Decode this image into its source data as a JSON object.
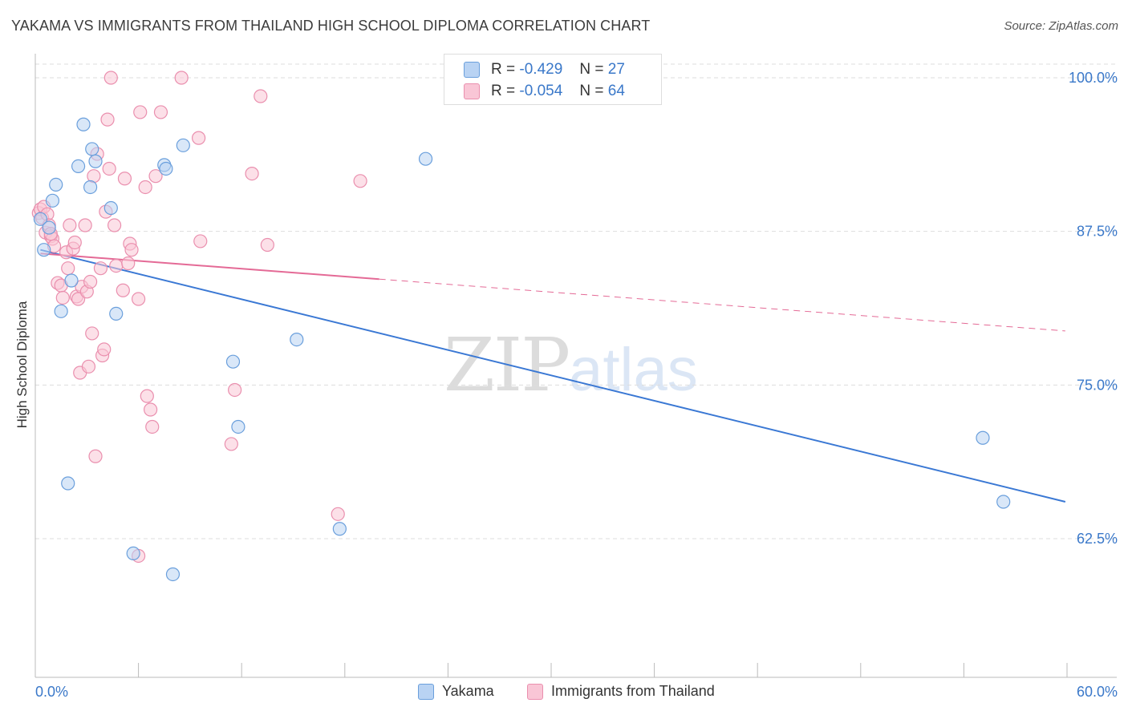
{
  "title": "YAKAMA VS IMMIGRANTS FROM THAILAND HIGH SCHOOL DIPLOMA CORRELATION CHART",
  "source": "Source: ZipAtlas.com",
  "watermark": {
    "zip": "ZIP",
    "atlas": "atlas"
  },
  "legend": {
    "rows": [
      {
        "r_label": "R =",
        "r_value": "-0.429",
        "n_label": "N =",
        "n_value": "27"
      },
      {
        "r_label": "R =",
        "r_value": "-0.054",
        "n_label": "N =",
        "n_value": "64"
      }
    ]
  },
  "colors": {
    "yakama_fill": "#b9d3f3",
    "yakama_stroke": "#6a9fdc",
    "yakama_line": "#3a78d4",
    "thai_fill": "#f9c6d6",
    "thai_stroke": "#ea8fae",
    "thai_line": "#e46a96",
    "axis_value": "#3a78c9",
    "grid": "#dddddd"
  },
  "chart_data": {
    "type": "scatter",
    "title": "YAKAMA VS IMMIGRANTS FROM THAILAND HIGH SCHOOL DIPLOMA CORRELATION CHART",
    "xlabel": "",
    "ylabel": "High School Diploma",
    "xlim": [
      0,
      60
    ],
    "ylim": [
      50,
      102
    ],
    "x_tick_labels": [
      "0.0%",
      "60.0%"
    ],
    "y_ticks": [
      62.5,
      75.0,
      87.5,
      100.0
    ],
    "y_tick_labels": [
      "62.5%",
      "75.0%",
      "87.5%",
      "100.0%"
    ],
    "grid": true,
    "legend_position": "top-center",
    "series": [
      {
        "name": "Yakama",
        "r": -0.429,
        "n": 27,
        "points": [
          [
            0.3,
            88.5
          ],
          [
            0.5,
            86.0
          ],
          [
            0.8,
            87.8
          ],
          [
            1.0,
            90.0
          ],
          [
            1.2,
            91.3
          ],
          [
            1.5,
            81.0
          ],
          [
            1.9,
            67.0
          ],
          [
            2.1,
            83.5
          ],
          [
            2.5,
            92.8
          ],
          [
            2.8,
            96.2
          ],
          [
            3.2,
            91.1
          ],
          [
            3.3,
            94.2
          ],
          [
            3.5,
            93.2
          ],
          [
            4.4,
            89.4
          ],
          [
            4.7,
            80.8
          ],
          [
            5.7,
            61.3
          ],
          [
            7.5,
            92.9
          ],
          [
            7.6,
            92.6
          ],
          [
            8.0,
            59.6
          ],
          [
            8.6,
            94.5
          ],
          [
            11.5,
            76.9
          ],
          [
            11.8,
            71.6
          ],
          [
            15.2,
            78.7
          ],
          [
            17.7,
            63.3
          ],
          [
            22.7,
            93.4
          ],
          [
            55.1,
            70.7
          ],
          [
            56.3,
            65.5
          ]
        ],
        "trend": {
          "x": [
            0.3,
            59.9
          ],
          "y": [
            86.0,
            65.5
          ],
          "dashed_from_x": null
        }
      },
      {
        "name": "Immigrants from Thailand",
        "r": -0.054,
        "n": 64,
        "points": [
          [
            0.2,
            89.0
          ],
          [
            0.3,
            89.3
          ],
          [
            0.4,
            88.6
          ],
          [
            0.5,
            89.5
          ],
          [
            0.6,
            87.4
          ],
          [
            0.7,
            88.9
          ],
          [
            0.8,
            88.0
          ],
          [
            0.9,
            87.1
          ],
          [
            1.0,
            86.9
          ],
          [
            1.1,
            86.3
          ],
          [
            1.3,
            83.3
          ],
          [
            1.5,
            83.1
          ],
          [
            1.6,
            82.1
          ],
          [
            1.8,
            85.8
          ],
          [
            1.9,
            84.5
          ],
          [
            2.0,
            88.0
          ],
          [
            2.2,
            86.1
          ],
          [
            2.3,
            86.6
          ],
          [
            2.4,
            82.2
          ],
          [
            2.5,
            82.0
          ],
          [
            2.6,
            76.0
          ],
          [
            2.7,
            83.0
          ],
          [
            2.9,
            88.0
          ],
          [
            3.0,
            82.6
          ],
          [
            3.1,
            76.5
          ],
          [
            3.2,
            83.4
          ],
          [
            3.3,
            79.2
          ],
          [
            3.4,
            92.0
          ],
          [
            3.5,
            69.2
          ],
          [
            3.6,
            93.8
          ],
          [
            3.8,
            84.5
          ],
          [
            3.9,
            77.4
          ],
          [
            4.0,
            77.9
          ],
          [
            4.1,
            89.1
          ],
          [
            4.2,
            96.6
          ],
          [
            4.3,
            92.6
          ],
          [
            4.4,
            100.0
          ],
          [
            4.6,
            88.0
          ],
          [
            4.7,
            84.7
          ],
          [
            5.1,
            82.7
          ],
          [
            5.2,
            91.8
          ],
          [
            5.4,
            84.9
          ],
          [
            5.5,
            86.5
          ],
          [
            5.6,
            86.0
          ],
          [
            6.0,
            82.0
          ],
          [
            6.0,
            61.1
          ],
          [
            6.1,
            97.2
          ],
          [
            6.4,
            91.1
          ],
          [
            6.5,
            74.1
          ],
          [
            6.7,
            73.0
          ],
          [
            6.8,
            71.6
          ],
          [
            7.0,
            92.0
          ],
          [
            7.3,
            97.2
          ],
          [
            8.5,
            100.0
          ],
          [
            9.5,
            95.1
          ],
          [
            9.6,
            86.7
          ],
          [
            11.4,
            70.2
          ],
          [
            11.6,
            74.6
          ],
          [
            12.6,
            92.2
          ],
          [
            13.1,
            98.5
          ],
          [
            13.5,
            86.4
          ],
          [
            17.6,
            64.5
          ],
          [
            18.9,
            91.6
          ],
          [
            0.9,
            87.3
          ]
        ],
        "trend": {
          "x": [
            0.3,
            59.9
          ],
          "y": [
            85.7,
            79.4
          ],
          "dashed_from_x": 20.0
        }
      }
    ]
  }
}
